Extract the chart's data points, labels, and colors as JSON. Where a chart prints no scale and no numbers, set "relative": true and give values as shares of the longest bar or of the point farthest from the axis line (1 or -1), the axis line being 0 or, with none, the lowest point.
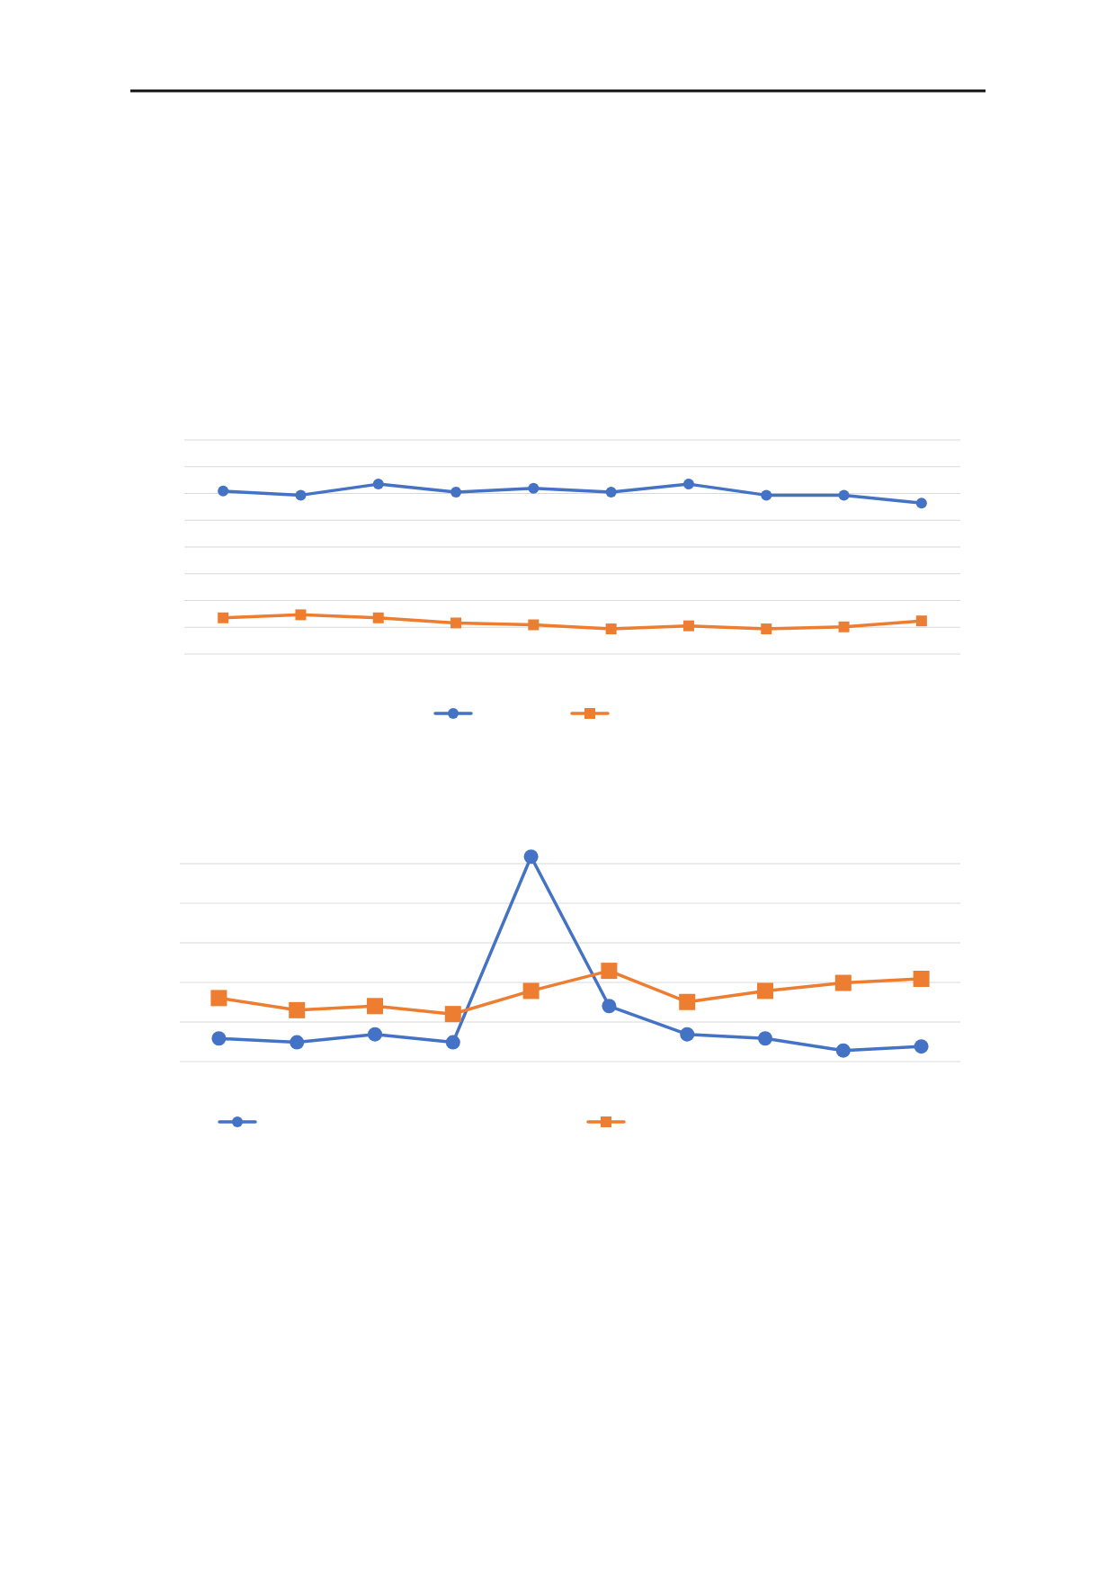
{
  "chart_data": [
    {
      "type": "line",
      "relative": true,
      "grid": true,
      "categories": [
        null,
        null,
        null,
        null,
        null,
        null,
        null,
        null,
        null,
        null
      ],
      "series": [
        {
          "color": "#4472c4",
          "marker": "circle",
          "values": [
            0.959,
            0.935,
            1,
            0.953,
            0.976,
            0.953,
            1,
            0.935,
            0.935,
            0.888
          ]
        },
        {
          "color": "#ed7d31",
          "marker": "square",
          "values": [
            0.213,
            0.231,
            0.213,
            0.183,
            0.172,
            0.148,
            0.166,
            0.148,
            0.16,
            0.195
          ]
        }
      ]
    },
    {
      "type": "line",
      "relative": true,
      "grid": true,
      "categories": [
        null,
        null,
        null,
        null,
        null,
        null,
        null,
        null,
        null,
        null
      ],
      "series": [
        {
          "color": "#4472c4",
          "marker": "circle",
          "values": [
            0.113,
            0.094,
            0.133,
            0.094,
            1,
            0.271,
            0.133,
            0.113,
            0.054,
            0.074
          ]
        },
        {
          "color": "#ed7d31",
          "marker": "square",
          "values": [
            0.31,
            0.251,
            0.271,
            0.232,
            0.345,
            0.443,
            0.291,
            0.345,
            0.384,
            0.404
          ]
        }
      ]
    }
  ]
}
